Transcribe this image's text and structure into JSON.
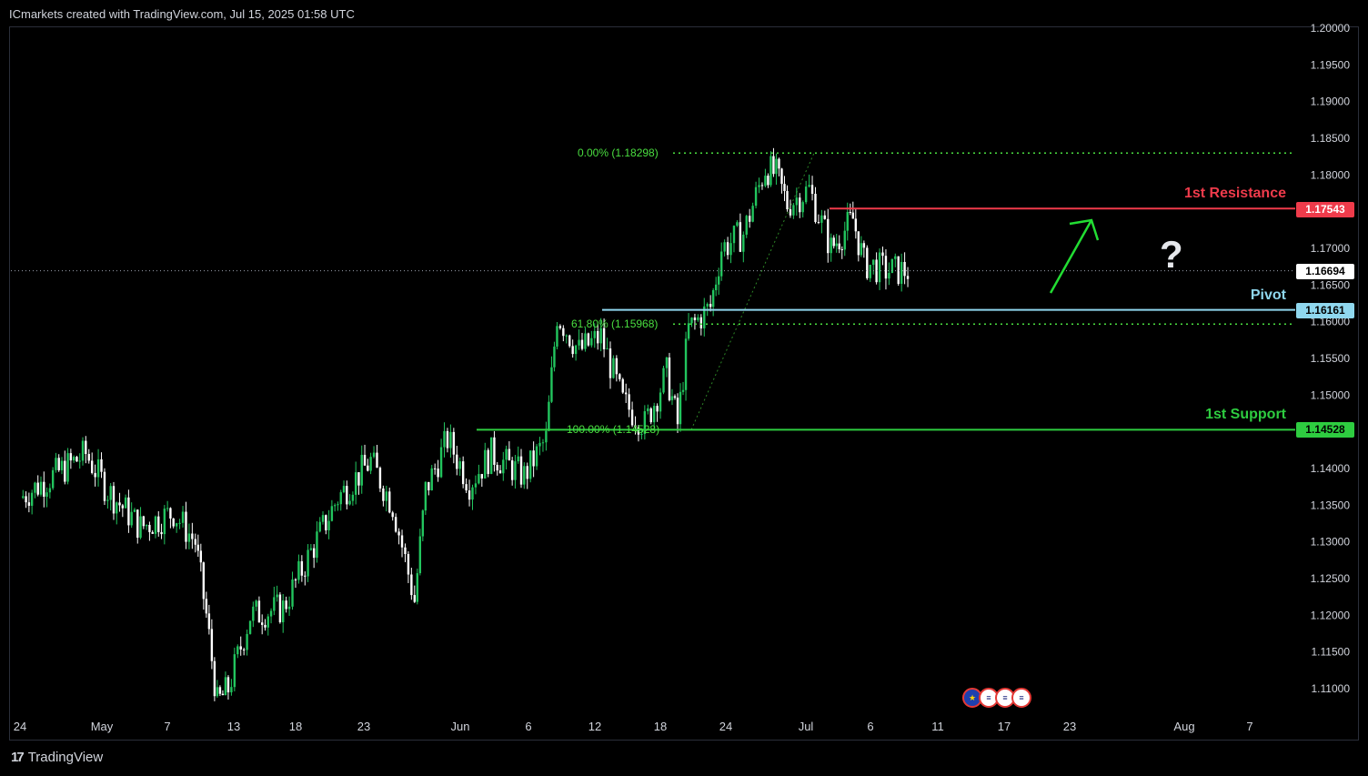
{
  "header": {
    "attribution": "ICmarkets created with TradingView.com, Jul 15, 2025 01:58 UTC"
  },
  "footer": {
    "logo_text": "TradingView",
    "logo_icon": "tradingview-logo-icon"
  },
  "colors": {
    "background": "#000000",
    "up_candle": "#22c55e",
    "down_candle": "#ffffff",
    "resistance": "#ef3b4b",
    "pivot": "#8fd7ee",
    "support": "#2ecc40",
    "fib": "#4ade40",
    "arrow": "#22dd33",
    "current_price_bg": "#ffffff"
  },
  "levels": {
    "resistance": {
      "label": "1st Resistance",
      "value": 1.17543,
      "tag": "1.17543"
    },
    "pivot": {
      "label": "Pivot",
      "value": 1.16161,
      "tag": "1.16161"
    },
    "support": {
      "label": "1st Support",
      "value": 1.14528,
      "tag": "1.14528"
    },
    "current": {
      "value": 1.16694,
      "tag": "1.16694"
    }
  },
  "fib_labels": {
    "top": "0.00% (1.18298)",
    "mid": "61.80% (1.15968)",
    "bottom": "100.00% (1.14528)"
  },
  "annotation": {
    "question_mark": "?"
  },
  "events": [
    {
      "icon": "eu-flag-icon"
    },
    {
      "icon": "us-flag-icon"
    },
    {
      "icon": "us-flag-icon"
    },
    {
      "icon": "us-flag-icon"
    }
  ],
  "chart_data": {
    "type": "candlestick",
    "title": "",
    "xlabel": "",
    "ylabel": "",
    "ylim": [
      1.105,
      1.2
    ],
    "y_ticks": [
      "1.20000",
      "1.19500",
      "1.19000",
      "1.18500",
      "1.18000",
      "1.17500",
      "1.17000",
      "1.16500",
      "1.16000",
      "1.15500",
      "1.15000",
      "1.14500",
      "1.14000",
      "1.13500",
      "1.13000",
      "1.12500",
      "1.12000",
      "1.11500",
      "1.11000"
    ],
    "x_ticks": [
      "24",
      "May",
      "7",
      "13",
      "18",
      "23",
      "Jun",
      "6",
      "12",
      "18",
      "24",
      "Jul",
      "6",
      "11",
      "17",
      "23",
      "Aug",
      "7"
    ],
    "close_path": [
      {
        "date": "Apr 24",
        "close": 1.136
      },
      {
        "date": "Apr 27",
        "close": 1.139
      },
      {
        "date": "Apr 30",
        "close": 1.142
      },
      {
        "date": "May 2",
        "close": 1.137
      },
      {
        "date": "May 5",
        "close": 1.132
      },
      {
        "date": "May 8",
        "close": 1.134
      },
      {
        "date": "May 10",
        "close": 1.13
      },
      {
        "date": "May 11",
        "close": 1.12
      },
      {
        "date": "May 12",
        "close": 1.108
      },
      {
        "date": "May 13",
        "close": 1.11
      },
      {
        "date": "May 15",
        "close": 1.12
      },
      {
        "date": "May 18",
        "close": 1.121
      },
      {
        "date": "May 20",
        "close": 1.127
      },
      {
        "date": "May 23",
        "close": 1.136
      },
      {
        "date": "May 26",
        "close": 1.141
      },
      {
        "date": "May 28",
        "close": 1.135
      },
      {
        "date": "May 30",
        "close": 1.122
      },
      {
        "date": "May 31",
        "close": 1.137
      },
      {
        "date": "Jun 2",
        "close": 1.144
      },
      {
        "date": "Jun 4",
        "close": 1.138
      },
      {
        "date": "Jun 6",
        "close": 1.142
      },
      {
        "date": "Jun 9",
        "close": 1.139
      },
      {
        "date": "Jun 11",
        "close": 1.144
      },
      {
        "date": "Jun 12",
        "close": 1.161
      },
      {
        "date": "Jun 14",
        "close": 1.156
      },
      {
        "date": "Jun 16",
        "close": 1.158
      },
      {
        "date": "Jun 18",
        "close": 1.149
      },
      {
        "date": "Jun 20",
        "close": 1.146
      },
      {
        "date": "Jun 22",
        "close": 1.153
      },
      {
        "date": "Jun 23",
        "close": 1.146
      },
      {
        "date": "Jun 24",
        "close": 1.159
      },
      {
        "date": "Jun 26",
        "close": 1.162
      },
      {
        "date": "Jun 27",
        "close": 1.17
      },
      {
        "date": "Jun 29",
        "close": 1.172
      },
      {
        "date": "Jul 1",
        "close": 1.181
      },
      {
        "date": "Jul 2",
        "close": 1.18
      },
      {
        "date": "Jul 3",
        "close": 1.176
      },
      {
        "date": "Jul 5",
        "close": 1.178
      },
      {
        "date": "Jul 7",
        "close": 1.17
      },
      {
        "date": "Jul 8",
        "close": 1.172
      },
      {
        "date": "Jul 9",
        "close": 1.174
      },
      {
        "date": "Jul 10",
        "close": 1.168
      },
      {
        "date": "Jul 12",
        "close": 1.167
      },
      {
        "date": "Jul 14",
        "close": 1.1669
      }
    ],
    "fib_levels": [
      {
        "pct": "0.00%",
        "value": 1.18298
      },
      {
        "pct": "61.80%",
        "value": 1.15968
      },
      {
        "pct": "100.00%",
        "value": 1.14528
      }
    ],
    "horizontal_levels": [
      {
        "name": "1st Resistance",
        "value": 1.17543
      },
      {
        "name": "Pivot",
        "value": 1.16161
      },
      {
        "name": "1st Support",
        "value": 1.14528
      }
    ],
    "current_price": 1.16694,
    "grid": false
  }
}
